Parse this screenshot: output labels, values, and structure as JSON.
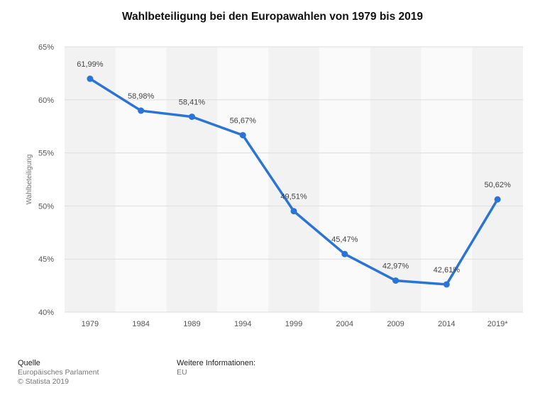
{
  "chart_data": {
    "type": "line",
    "title": "Wahlbeteiligung bei den Europawahlen von 1979 bis 2019",
    "xlabel": "",
    "ylabel": "Wahlbeteiligung",
    "categories": [
      "1979",
      "1984",
      "1989",
      "1994",
      "1999",
      "2004",
      "2009",
      "2014",
      "2019*"
    ],
    "series": [
      {
        "name": "Wahlbeteiligung",
        "values": [
          61.99,
          58.98,
          58.41,
          56.67,
          49.51,
          45.47,
          42.97,
          42.61,
          50.62
        ],
        "labels": [
          "61,99%",
          "58,98%",
          "58,41%",
          "56,67%",
          "49,51%",
          "45,47%",
          "42,97%",
          "42,61%",
          "50,62%"
        ]
      }
    ],
    "ylim": [
      40,
      65
    ],
    "yticks": [
      40,
      45,
      50,
      55,
      60,
      65
    ],
    "ytick_labels": [
      "40%",
      "45%",
      "50%",
      "55%",
      "60%",
      "65%"
    ],
    "grid": true,
    "legend": "none",
    "line_color": "#2a74d8"
  },
  "footer": {
    "source_heading": "Quelle",
    "source_lines": [
      "Europäisches Parlament",
      "© Statista 2019"
    ],
    "info_heading": "Weitere Informationen:",
    "info_lines": [
      "EU"
    ]
  }
}
